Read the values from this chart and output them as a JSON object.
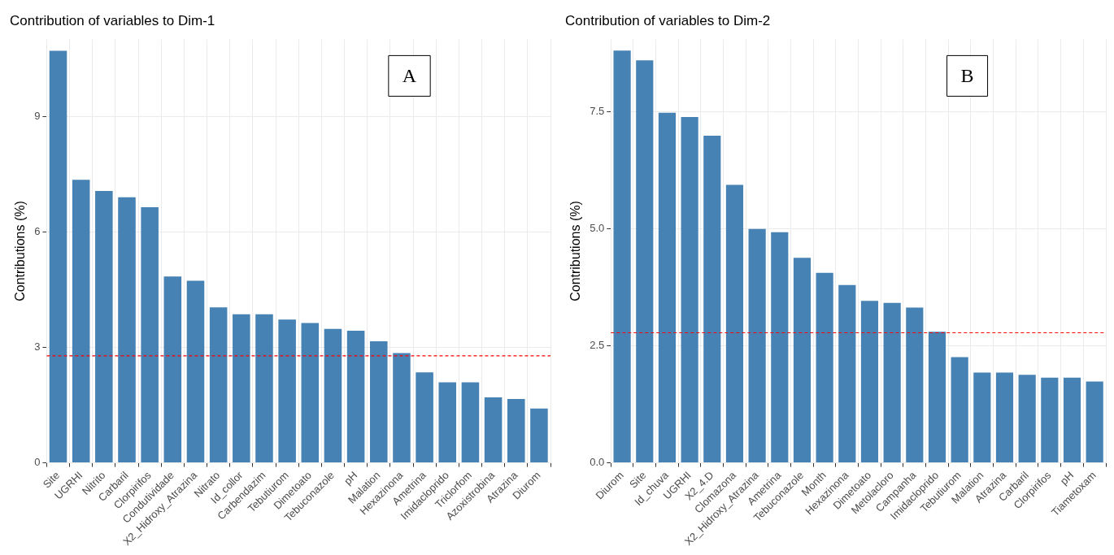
{
  "chart_data": [
    {
      "type": "bar",
      "title": "Contribution of variables to Dim-1",
      "ylabel": "Contributions (%)",
      "categories": [
        "Site",
        "UGRHI",
        "Nitrito",
        "Carbaril",
        "Clorpirifos",
        "Condutividade",
        "X2_Hidroxy_Atrazina",
        "Nitrato",
        "Id_collor",
        "Carbendazim",
        "Tebutiurom",
        "Dimetoato",
        "Tebuconazole",
        "pH",
        "Malation",
        "Hexazinona",
        "Ametrina",
        "Imidacloprido",
        "Triclorfom",
        "Azoxistrobina",
        "Atrazina",
        "Diurom"
      ],
      "values": [
        10.7,
        7.35,
        7.06,
        6.9,
        6.64,
        4.84,
        4.73,
        4.04,
        3.86,
        3.86,
        3.72,
        3.63,
        3.48,
        3.43,
        3.16,
        2.85,
        2.35,
        2.09,
        2.09,
        1.7,
        1.66,
        1.41
      ],
      "color": "#4682b4",
      "ylim": [
        0,
        11
      ],
      "yticks": [
        0,
        3,
        6,
        9
      ],
      "grid": true,
      "legend": false,
      "ref_lines": [
        {
          "axis": "y",
          "value": 2.78,
          "color": "#ff0000",
          "line_style": "dashed"
        }
      ],
      "annotations": [
        "A"
      ]
    },
    {
      "type": "bar",
      "title": "Contribution of variables to Dim-2",
      "ylabel": "Contributions (%)",
      "categories": [
        "Diurom",
        "Site",
        "Id_chuva",
        "UGRHI",
        "X2_4.D",
        "Clomazona",
        "X2_Hidroxy_Atrazina",
        "Ametrina",
        "Tebuconazole",
        "Month",
        "Hexazinona",
        "Dimetoato",
        "Metolacloro",
        "Campanha",
        "Imidacloprido",
        "Tebutiurom",
        "Malation",
        "Atrazina",
        "Carbaril",
        "Clorpirifos",
        "pH",
        "Tiametoxam"
      ],
      "values": [
        8.81,
        8.6,
        7.48,
        7.39,
        6.99,
        5.94,
        5.0,
        4.93,
        4.38,
        4.06,
        3.8,
        3.46,
        3.42,
        3.32,
        2.8,
        2.26,
        1.93,
        1.93,
        1.88,
        1.82,
        1.82,
        1.74
      ],
      "color": "#4682b4",
      "ylim": [
        0,
        9.05
      ],
      "yticks": [
        {
          "value": 0,
          "label": "0.0"
        },
        {
          "value": 2.5,
          "label": "2.5"
        },
        {
          "value": 5,
          "label": "5.0"
        },
        {
          "value": 7.5,
          "label": "7.5"
        }
      ],
      "grid": true,
      "legend": false,
      "ref_lines": [
        {
          "axis": "y",
          "value": 2.78,
          "color": "#ff0000",
          "line_style": "dashed"
        }
      ],
      "annotations": [
        "B"
      ]
    }
  ]
}
